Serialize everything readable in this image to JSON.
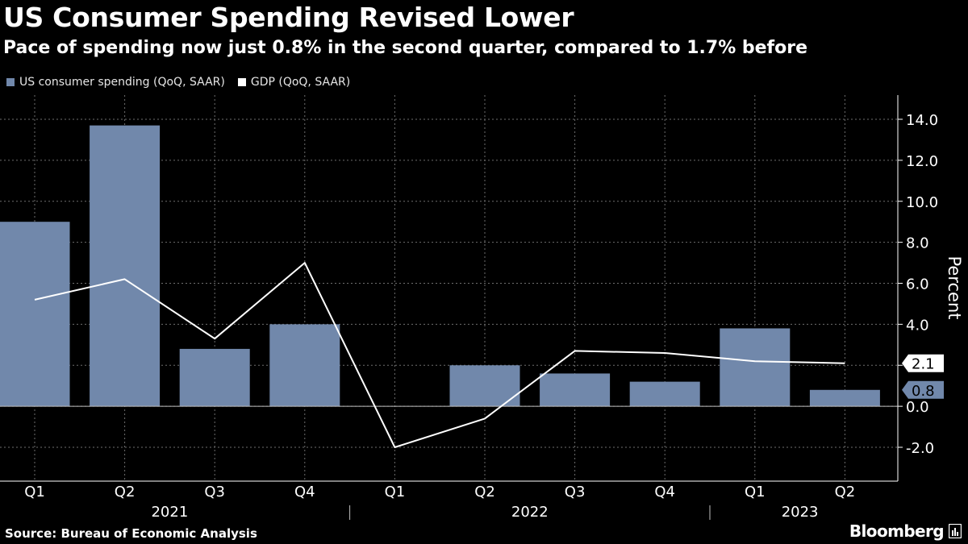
{
  "title": "US Consumer Spending Revised Lower",
  "subtitle": "Pace of spending now just 0.8% in the second quarter, compared to 1.7% before",
  "source": "Source: Bureau of Economic Analysis",
  "brand": "Bloomberg",
  "brand_icon": "bloomberg-terminal-icon",
  "colors": {
    "background": "#000000",
    "bar": "#7188ab",
    "line": "#ffffff",
    "grid": "#6e6e6e",
    "text": "#ffffff"
  },
  "chart_data": {
    "type": "bar",
    "categories": [
      "Q1",
      "Q2",
      "Q3",
      "Q4",
      "Q1",
      "Q2",
      "Q3",
      "Q4",
      "Q1",
      "Q2"
    ],
    "year_groups": [
      {
        "label": "2021",
        "start": 0,
        "end": 3
      },
      {
        "label": "2022",
        "start": 4,
        "end": 7
      },
      {
        "label": "2023",
        "start": 8,
        "end": 9
      }
    ],
    "series": [
      {
        "name": "US consumer spending (QoQ, SAAR)",
        "kind": "bar",
        "color": "#7188ab",
        "values": [
          9.0,
          13.7,
          2.8,
          4.0,
          0.0,
          2.0,
          1.6,
          1.2,
          3.8,
          0.8
        ],
        "end_label": "0.8"
      },
      {
        "name": "GDP (QoQ, SAAR)",
        "kind": "line",
        "color": "#ffffff",
        "values": [
          5.2,
          6.2,
          3.3,
          7.0,
          -2.0,
          -0.6,
          2.7,
          2.6,
          2.2,
          2.1
        ],
        "end_label": "2.1"
      }
    ],
    "ylabel": "Percent",
    "ylim": [
      -3.6,
      14.8
    ],
    "yticks": [
      14.0,
      12.0,
      10.0,
      8.0,
      6.0,
      4.0,
      2.0,
      0.0,
      -2.0
    ],
    "ytick_labels": [
      "14.0",
      "12.0",
      "10.0",
      "8.0",
      "6.0",
      "4.0",
      "",
      "0.0",
      "-2.0"
    ],
    "grid": true,
    "legend_position": "top-left"
  }
}
